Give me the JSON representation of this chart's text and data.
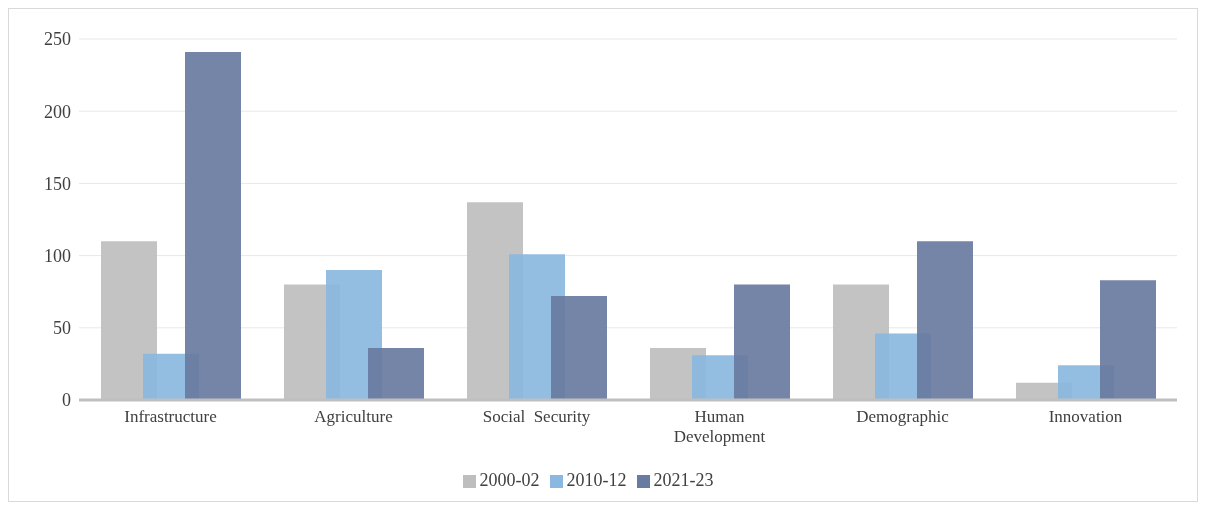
{
  "chart_data": {
    "type": "bar",
    "categories": [
      "Infrastructure",
      "Agriculture",
      "Social  Security",
      "Human Development",
      "Demographic",
      "Innovation"
    ],
    "series": [
      {
        "name": "2000-02",
        "color": "#bebebe",
        "values": [
          110,
          80,
          137,
          36,
          80,
          12
        ]
      },
      {
        "name": "2010-12",
        "color": "#8ab8e0",
        "values": [
          32,
          90,
          101,
          31,
          46,
          24
        ]
      },
      {
        "name": "2021-23",
        "color": "#687ba1",
        "values": [
          241,
          36,
          72,
          80,
          110,
          83
        ]
      }
    ],
    "ylim": [
      0,
      250
    ],
    "yticks": [
      0,
      50,
      100,
      150,
      200,
      250
    ],
    "grid": "y",
    "legend": "bottom"
  }
}
